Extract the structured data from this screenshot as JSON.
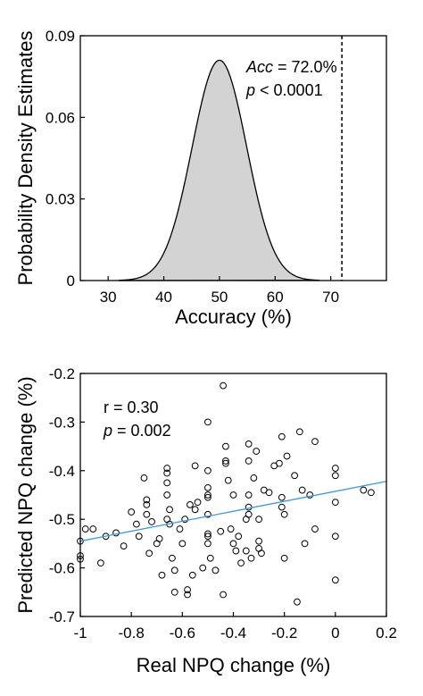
{
  "chart_data": [
    {
      "type": "area",
      "ylabel": "Probability Density Estimates",
      "xlabel": "Accuracy (%)",
      "xlim": [
        25,
        80
      ],
      "ylim": [
        0,
        0.09
      ],
      "xticks": [
        30,
        40,
        50,
        60,
        70
      ],
      "yticks": [
        0,
        0.03,
        0.06,
        0.09
      ],
      "ytick_labels": [
        "0",
        "0.03",
        "0.06",
        "0.09"
      ],
      "distribution": {
        "mean": 50,
        "sd": 4.9,
        "peak": 0.081,
        "x_range": [
          32,
          68
        ]
      },
      "marker_x": 72,
      "annotations": [
        {
          "italic": "Acc",
          "text": " = 72.0%"
        },
        {
          "italic": "p",
          "text": " < 0.0001"
        }
      ],
      "fill_color": "#d3d3d3",
      "grid": false
    },
    {
      "type": "scatter",
      "ylabel": "Predicted NPQ change (%)",
      "xlabel": "Real NPQ change (%)",
      "xlim": [
        -1,
        0.2
      ],
      "ylim": [
        -0.7,
        -0.2
      ],
      "xticks": [
        -1,
        -0.8,
        -0.6,
        -0.4,
        -0.2,
        0,
        0.2
      ],
      "xtick_labels": [
        "-1",
        "-0.8",
        "-0.6",
        "-0.4",
        "-0.2",
        "0",
        "0.2"
      ],
      "yticks": [
        -0.7,
        -0.6,
        -0.5,
        -0.4,
        -0.3,
        -0.2
      ],
      "ytick_labels": [
        "-0.7",
        "-0.6",
        "-0.5",
        "-0.4",
        "-0.3",
        "-0.2"
      ],
      "annotations": [
        {
          "italic": "",
          "text": "r = 0.30"
        },
        {
          "italic": "p",
          "text": " = 0.002"
        }
      ],
      "fit_line": {
        "x": [
          -1,
          0.2
        ],
        "y": [
          -0.545,
          -0.422
        ],
        "color": "#3b9ad9"
      },
      "grid": false,
      "points": [
        [
          -1.0,
          -0.545
        ],
        [
          -1.0,
          -0.575
        ],
        [
          -1.0,
          -0.582
        ],
        [
          -0.98,
          -0.52
        ],
        [
          -0.95,
          -0.52
        ],
        [
          -0.92,
          -0.59
        ],
        [
          -0.9,
          -0.535
        ],
        [
          -0.86,
          -0.528
        ],
        [
          -0.83,
          -0.555
        ],
        [
          -0.8,
          -0.485
        ],
        [
          -0.78,
          -0.51
        ],
        [
          -0.77,
          -0.535
        ],
        [
          -0.75,
          -0.415
        ],
        [
          -0.74,
          -0.46
        ],
        [
          -0.74,
          -0.47
        ],
        [
          -0.74,
          -0.49
        ],
        [
          -0.72,
          -0.505
        ],
        [
          -0.73,
          -0.57
        ],
        [
          -0.7,
          -0.55
        ],
        [
          -0.69,
          -0.54
        ],
        [
          -0.68,
          -0.615
        ],
        [
          -0.66,
          -0.395
        ],
        [
          -0.66,
          -0.405
        ],
        [
          -0.66,
          -0.425
        ],
        [
          -0.66,
          -0.45
        ],
        [
          -0.66,
          -0.5
        ],
        [
          -0.65,
          -0.48
        ],
        [
          -0.65,
          -0.51
        ],
        [
          -0.64,
          -0.58
        ],
        [
          -0.63,
          -0.605
        ],
        [
          -0.63,
          -0.65
        ],
        [
          -0.61,
          -0.52
        ],
        [
          -0.6,
          -0.55
        ],
        [
          -0.59,
          -0.5
        ],
        [
          -0.58,
          -0.645
        ],
        [
          -0.58,
          -0.655
        ],
        [
          -0.57,
          -0.47
        ],
        [
          -0.56,
          -0.615
        ],
        [
          -0.55,
          -0.39
        ],
        [
          -0.55,
          -0.48
        ],
        [
          -0.54,
          -0.465
        ],
        [
          -0.52,
          -0.6
        ],
        [
          -0.5,
          -0.3
        ],
        [
          -0.5,
          -0.4
        ],
        [
          -0.5,
          -0.435
        ],
        [
          -0.5,
          -0.45
        ],
        [
          -0.5,
          -0.455
        ],
        [
          -0.5,
          -0.49
        ],
        [
          -0.5,
          -0.53
        ],
        [
          -0.5,
          -0.535
        ],
        [
          -0.5,
          -0.55
        ],
        [
          -0.49,
          -0.58
        ],
        [
          -0.47,
          -0.605
        ],
        [
          -0.45,
          -0.525
        ],
        [
          -0.44,
          -0.225
        ],
        [
          -0.44,
          -0.655
        ],
        [
          -0.43,
          -0.35
        ],
        [
          -0.43,
          -0.38
        ],
        [
          -0.43,
          -0.385
        ],
        [
          -0.42,
          -0.42
        ],
        [
          -0.41,
          -0.52
        ],
        [
          -0.4,
          -0.45
        ],
        [
          -0.4,
          -0.55
        ],
        [
          -0.39,
          -0.565
        ],
        [
          -0.38,
          -0.535
        ],
        [
          -0.37,
          -0.59
        ],
        [
          -0.35,
          -0.5
        ],
        [
          -0.35,
          -0.565
        ],
        [
          -0.34,
          -0.345
        ],
        [
          -0.34,
          -0.38
        ],
        [
          -0.34,
          -0.45
        ],
        [
          -0.34,
          -0.475
        ],
        [
          -0.34,
          -0.49
        ],
        [
          -0.33,
          -0.58
        ],
        [
          -0.32,
          -0.415
        ],
        [
          -0.31,
          -0.36
        ],
        [
          -0.3,
          -0.5
        ],
        [
          -0.3,
          -0.545
        ],
        [
          -0.3,
          -0.56
        ],
        [
          -0.29,
          -0.57
        ],
        [
          -0.28,
          -0.44
        ],
        [
          -0.26,
          -0.445
        ],
        [
          -0.24,
          -0.39
        ],
        [
          -0.22,
          -0.385
        ],
        [
          -0.21,
          -0.33
        ],
        [
          -0.21,
          -0.455
        ],
        [
          -0.21,
          -0.475
        ],
        [
          -0.2,
          -0.49
        ],
        [
          -0.2,
          -0.58
        ],
        [
          -0.19,
          -0.37
        ],
        [
          -0.16,
          -0.41
        ],
        [
          -0.15,
          -0.67
        ],
        [
          -0.14,
          -0.32
        ],
        [
          -0.13,
          -0.44
        ],
        [
          -0.12,
          -0.55
        ],
        [
          -0.1,
          -0.45
        ],
        [
          -0.08,
          -0.34
        ],
        [
          -0.08,
          -0.52
        ],
        [
          0.0,
          -0.395
        ],
        [
          0.0,
          -0.41
        ],
        [
          0.0,
          -0.465
        ],
        [
          0.0,
          -0.535
        ],
        [
          0.0,
          -0.625
        ],
        [
          0.11,
          -0.44
        ],
        [
          0.14,
          -0.445
        ]
      ]
    }
  ]
}
